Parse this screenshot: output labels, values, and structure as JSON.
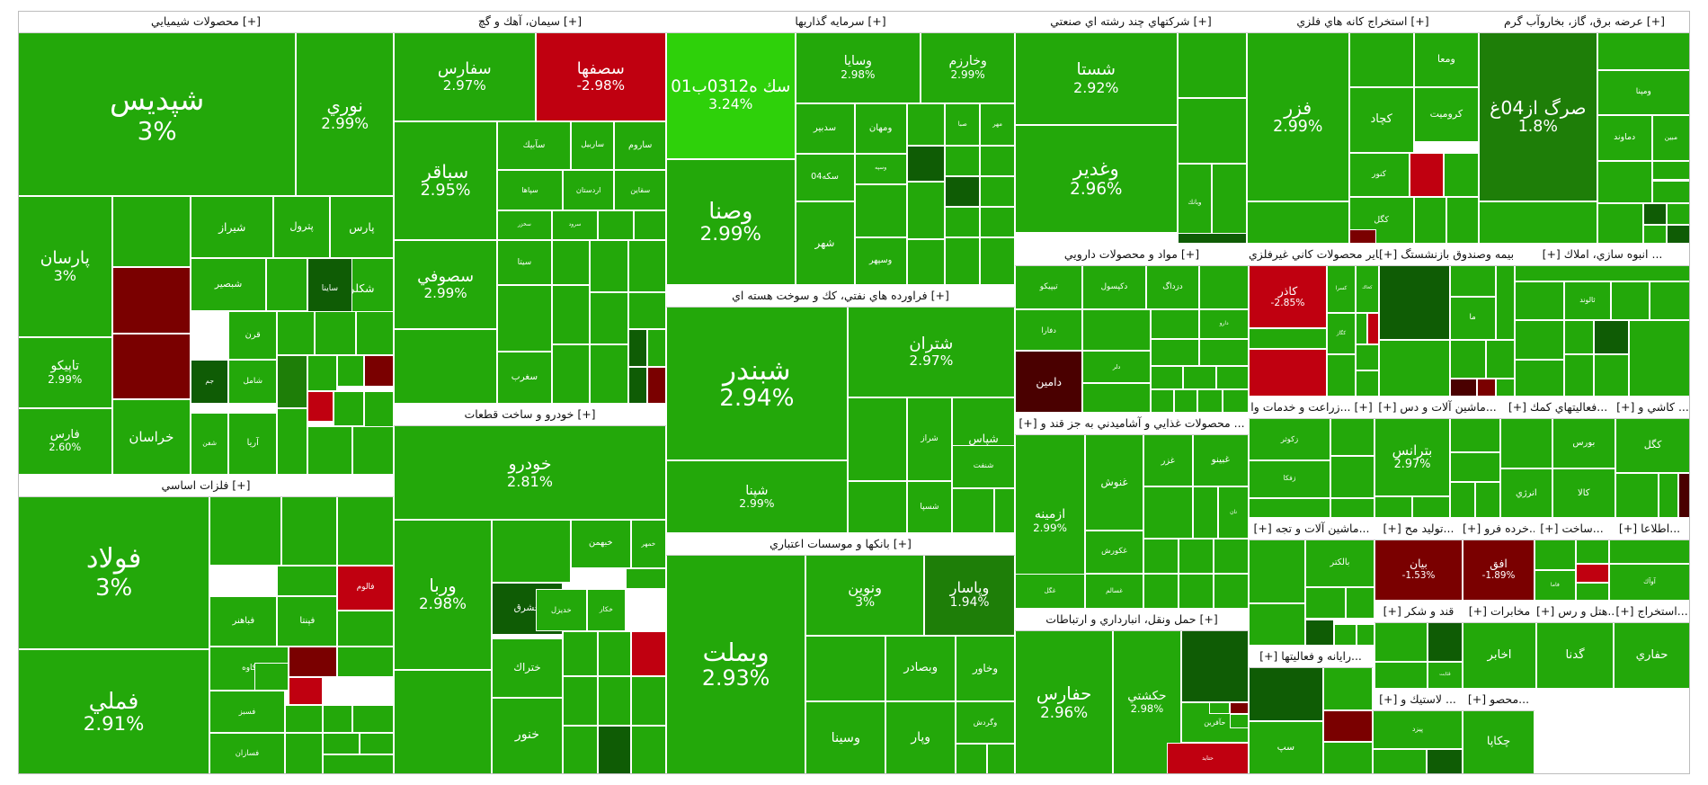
{
  "colors": {
    "up": "#23a80a",
    "up_strong": "#2ed10a",
    "up_weak": "#1e7e08",
    "flat": "#0f5c05",
    "down": "#c00010",
    "down_dark": "#7a0000",
    "down_darker": "#4a0000",
    "border": "#ffffff",
    "header_bg": "#ffffff"
  },
  "chart_data": {
    "type": "treemap",
    "sectors": [
      {
        "name": "محصولات شيميايي [+]",
        "tiles": [
          {
            "name": "شپديس",
            "change": "3%"
          },
          {
            "name": "نوري",
            "change": "2.99%"
          },
          {
            "name": "پارس",
            "change": ""
          },
          {
            "name": "پترول",
            "change": ""
          },
          {
            "name": "شيراز",
            "change": ""
          },
          {
            "name": "پارسان",
            "change": "3%"
          },
          {
            "name": "شكلر",
            "change": ""
          },
          {
            "name": "ساينا",
            "change": ""
          },
          {
            "name": "شبصير",
            "change": ""
          },
          {
            "name": "تاپيكو",
            "change": "2.99%"
          },
          {
            "name": "جم",
            "change": ""
          },
          {
            "name": "شامل",
            "change": ""
          },
          {
            "name": "آريا",
            "change": ""
          },
          {
            "name": "شفن",
            "change": ""
          },
          {
            "name": "خراسان",
            "change": ""
          },
          {
            "name": "فارس",
            "change": "2.60%"
          },
          {
            "name": "قرن",
            "change": ""
          }
        ]
      },
      {
        "name": "سيمان، آهك و گچ [+]",
        "tiles": [
          {
            "name": "سفارس",
            "change": "2.97%"
          },
          {
            "name": "سصفها",
            "change": "-2.98%"
          },
          {
            "name": "سباقر",
            "change": "2.95%"
          },
          {
            "name": "ساروم",
            "change": ""
          },
          {
            "name": "ساربيل",
            "change": ""
          },
          {
            "name": "سآبيك",
            "change": ""
          },
          {
            "name": "سقاين",
            "change": ""
          },
          {
            "name": "اردستان",
            "change": ""
          },
          {
            "name": "سپاها",
            "change": ""
          },
          {
            "name": "سخزر",
            "change": ""
          },
          {
            "name": "سرود",
            "change": ""
          },
          {
            "name": "سيتا",
            "change": ""
          },
          {
            "name": "سغرب",
            "change": ""
          },
          {
            "name": "سصوفي",
            "change": "2.99%"
          }
        ]
      },
      {
        "name": "سرمايه گذاريها [+]",
        "tiles": [
          {
            "name": "سك ه0312ب01",
            "change": "3.24%"
          },
          {
            "name": "وسايا",
            "change": "2.98%"
          },
          {
            "name": "وخارزم",
            "change": "2.99%"
          },
          {
            "name": "مهر",
            "change": ""
          },
          {
            "name": "صبا",
            "change": ""
          },
          {
            "name": "سدبير",
            "change": ""
          },
          {
            "name": "ومهان",
            "change": ""
          },
          {
            "name": "وصنا",
            "change": "2.99%"
          },
          {
            "name": "وسپه",
            "change": ""
          },
          {
            "name": "سكه04",
            "change": ""
          },
          {
            "name": "شهر",
            "change": ""
          },
          {
            "name": "وسپهر",
            "change": ""
          }
        ]
      },
      {
        "name": "شركتهاي چند رشته اي صنعتي [+]",
        "tiles": [
          {
            "name": "شستا",
            "change": "2.92%"
          },
          {
            "name": "وغدير",
            "change": "2.96%"
          },
          {
            "name": "وبانك",
            "change": ""
          }
        ]
      },
      {
        "name": "استخراج كانه هاي فلزي [+]",
        "tiles": [
          {
            "name": "فزر",
            "change": "2.99%"
          },
          {
            "name": "ومعا",
            "change": ""
          },
          {
            "name": "كروميت",
            "change": ""
          },
          {
            "name": "كچاد",
            "change": ""
          },
          {
            "name": "كنور",
            "change": ""
          },
          {
            "name": "كگل",
            "change": ""
          }
        ]
      },
      {
        "name": "عرضه برق، گاز، بخاروآب گرم [+]",
        "tiles": [
          {
            "name": "صرگ از04غ",
            "change": "1.8%"
          },
          {
            "name": "ومپنا",
            "change": ""
          },
          {
            "name": "دماوند",
            "change": ""
          },
          {
            "name": "مبين",
            "change": ""
          }
        ]
      },
      {
        "name": "فلزات اساسي [+]",
        "tiles": [
          {
            "name": "فولاد",
            "change": "3%"
          },
          {
            "name": "فملي",
            "change": "2.91%"
          },
          {
            "name": "فالوم",
            "change": ""
          },
          {
            "name": "فپنتا",
            "change": ""
          },
          {
            "name": "فباهنر",
            "change": ""
          },
          {
            "name": "كاوه",
            "change": ""
          },
          {
            "name": "فسبز",
            "change": ""
          },
          {
            "name": "فسازان",
            "change": ""
          }
        ]
      },
      {
        "name": "خودرو و ساخت قطعات [+]",
        "tiles": [
          {
            "name": "خودرو",
            "change": "2.81%"
          },
          {
            "name": "خمهر",
            "change": ""
          },
          {
            "name": "خبهمن",
            "change": ""
          },
          {
            "name": "وربا",
            "change": "2.98%"
          },
          {
            "name": "خشرق",
            "change": ""
          },
          {
            "name": "خكار",
            "change": ""
          },
          {
            "name": "خديزل",
            "change": ""
          },
          {
            "name": "ختراك",
            "change": ""
          },
          {
            "name": "خنور",
            "change": ""
          }
        ]
      },
      {
        "name": "فراورده هاي نفتي، كك و سوخت هسته اي [+]",
        "tiles": [
          {
            "name": "شبندر",
            "change": "2.94%"
          },
          {
            "name": "شتران",
            "change": "2.97%"
          },
          {
            "name": "شپنا",
            "change": "2.99%"
          },
          {
            "name": "شپاس",
            "change": ""
          },
          {
            "name": "شراز",
            "change": ""
          },
          {
            "name": "شنفت",
            "change": ""
          },
          {
            "name": "شسپا",
            "change": ""
          }
        ]
      },
      {
        "name": "بانكها و موسسات اعتباري [+]",
        "tiles": [
          {
            "name": "وبملت",
            "change": "2.93%"
          },
          {
            "name": "ونوين",
            "change": "3%"
          },
          {
            "name": "وپاسار",
            "change": "1.94%"
          },
          {
            "name": "وخاور",
            "change": ""
          },
          {
            "name": "وبصادر",
            "change": ""
          },
          {
            "name": "وپار",
            "change": ""
          },
          {
            "name": "وسينا",
            "change": ""
          },
          {
            "name": "وگردش",
            "change": ""
          }
        ]
      },
      {
        "name": "مواد و محصولات دارويي [+]",
        "tiles": [
          {
            "name": "تيپيكو",
            "change": ""
          },
          {
            "name": "دكپسول",
            "change": ""
          },
          {
            "name": "دزداگ",
            "change": ""
          },
          {
            "name": "دفارا",
            "change": ""
          },
          {
            "name": "دامين",
            "change": ""
          },
          {
            "name": "دلر",
            "change": ""
          },
          {
            "name": "دارو",
            "change": ""
          }
        ]
      },
      {
        "name": "[+] محصولات غذايي و آشاميدني به جز قند و ...",
        "tiles": [
          {
            "name": "ازمينه",
            "change": "2.99%"
          },
          {
            "name": "غنوش",
            "change": ""
          },
          {
            "name": "غزر",
            "change": ""
          },
          {
            "name": "غبينو",
            "change": ""
          },
          {
            "name": "نان",
            "change": ""
          },
          {
            "name": "غكورش",
            "change": ""
          },
          {
            "name": "غگل",
            "change": ""
          },
          {
            "name": "غسالم",
            "change": ""
          }
        ]
      },
      {
        "name": "حمل ونقل، انبارداري و ارتباطات [+]",
        "tiles": [
          {
            "name": "حفارس",
            "change": "2.96%"
          },
          {
            "name": "حكشتي",
            "change": "2.98%"
          },
          {
            "name": "حآفرين",
            "change": ""
          },
          {
            "name": "حتايد",
            "change": ""
          }
        ]
      },
      {
        "name": "ساير محصولات كاني غيرفلزي [+]",
        "tiles": [
          {
            "name": "كاذر",
            "change": "-2.85%"
          },
          {
            "name": "كسرا",
            "change": ""
          },
          {
            "name": "كخاك",
            "change": ""
          },
          {
            "name": "كگاز",
            "change": ""
          }
        ]
      },
      {
        "name": "[+] بيمه وصندوق بازنشستگ...",
        "tiles": [
          {
            "name": "ما",
            "change": ""
          }
        ]
      },
      {
        "name": "[+] انبوه سازي، املاك ...",
        "tiles": [
          {
            "name": "ثالوند",
            "change": ""
          }
        ]
      },
      {
        "name": "زراعت و خدمات وا... [+]",
        "tiles": [
          {
            "name": "زفكا",
            "change": ""
          },
          {
            "name": "زكوثر",
            "change": ""
          }
        ]
      },
      {
        "name": "[+] ماشين آلات و دس...",
        "tiles": [
          {
            "name": "بترانس",
            "change": "2.97%"
          }
        ]
      },
      {
        "name": "[+] فعاليتهاي كمك...",
        "tiles": [
          {
            "name": "بورس",
            "change": ""
          },
          {
            "name": "كالا",
            "change": ""
          },
          {
            "name": "انرژي",
            "change": ""
          }
        ]
      },
      {
        "name": "[+] كاشي و ...",
        "tiles": [
          {
            "name": "كگل",
            "change": ""
          }
        ]
      },
      {
        "name": "[+] ماشين آلات و تجه...",
        "tiles": [
          {
            "name": "بالكتر",
            "change": ""
          }
        ]
      },
      {
        "name": "[+] توليد مح...",
        "tiles": [
          {
            "name": "بيان",
            "change": "-1.53%"
          }
        ]
      },
      {
        "name": "[+] خرده فرو...",
        "tiles": [
          {
            "name": "افق",
            "change": "-1.89%"
          }
        ]
      },
      {
        "name": "[+] ساخت...",
        "tiles": [
          {
            "name": "فاما",
            "change": ""
          }
        ]
      },
      {
        "name": "[+] اطلاعا...",
        "tiles": [
          {
            "name": "آوآك",
            "change": ""
          }
        ]
      },
      {
        "name": "[+] قند و شكر",
        "tiles": [
          {
            "name": "قثابت",
            "change": ""
          }
        ]
      },
      {
        "name": "[+] مخابرات",
        "tiles": [
          {
            "name": "اخابر",
            "change": ""
          }
        ]
      },
      {
        "name": "[+] هتل و رس...",
        "tiles": [
          {
            "name": "گدنا",
            "change": ""
          }
        ]
      },
      {
        "name": "[+] استخراج...",
        "tiles": [
          {
            "name": "حفاري",
            "change": ""
          }
        ]
      },
      {
        "name": "[+] رايانه و فعاليتها...",
        "tiles": [
          {
            "name": "سپ",
            "change": ""
          }
        ]
      },
      {
        "name": "[+] لاستيك و ...",
        "tiles": [
          {
            "name": "پيزد",
            "change": ""
          }
        ]
      },
      {
        "name": "[+] محصو...",
        "tiles": [
          {
            "name": "چكاپا",
            "change": ""
          }
        ]
      }
    ]
  }
}
